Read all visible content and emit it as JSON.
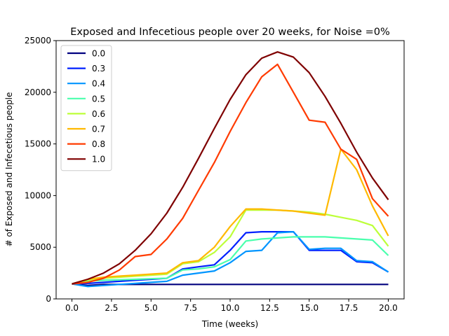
{
  "chart_data": {
    "type": "line",
    "title": "Exposed and Infecetious people over 20 weeks, for Noise =0%",
    "xlabel": "Time (weeks)",
    "ylabel": "# of Exposed and Infecetious people",
    "xlim": [
      -1,
      21
    ],
    "ylim": [
      0,
      25000
    ],
    "x_ticks": [
      0,
      2.5,
      5,
      7.5,
      10,
      12.5,
      15,
      17.5,
      20
    ],
    "x_tick_labels": [
      "0.0",
      "2.5",
      "5.0",
      "7.5",
      "10.0",
      "12.5",
      "15.0",
      "17.5",
      "20.0"
    ],
    "y_ticks": [
      0,
      5000,
      10000,
      15000,
      20000,
      25000
    ],
    "y_tick_labels": [
      "0",
      "5000",
      "10000",
      "15000",
      "20000",
      "25000"
    ],
    "grid": false,
    "legend_position": "top-left",
    "x": [
      0,
      1,
      2,
      3,
      4,
      5,
      6,
      7,
      8,
      9,
      10,
      11,
      12,
      13,
      14,
      15,
      16,
      17,
      18,
      19,
      20
    ],
    "series": [
      {
        "name": "0.0",
        "color": "#00007f",
        "values": [
          1450,
          1300,
          1400,
          1400,
          1400,
          1400,
          1400,
          1400,
          1400,
          1400,
          1400,
          1400,
          1400,
          1400,
          1400,
          1400,
          1400,
          1400,
          1400,
          1400,
          1400
        ]
      },
      {
        "name": "0.3",
        "color": "#0020ff",
        "values": [
          1450,
          1500,
          1600,
          1700,
          1800,
          1900,
          2000,
          2900,
          3100,
          3300,
          4700,
          6400,
          6500,
          6500,
          6500,
          4700,
          4700,
          4700,
          3600,
          3500,
          2600
        ]
      },
      {
        "name": "0.4",
        "color": "#0095ff",
        "values": [
          1450,
          1200,
          1300,
          1400,
          1500,
          1600,
          1700,
          2300,
          2500,
          2700,
          3500,
          4600,
          4700,
          6400,
          6500,
          4800,
          4900,
          4900,
          3700,
          3600,
          2600
        ]
      },
      {
        "name": "0.5",
        "color": "#4affad",
        "values": [
          1450,
          1700,
          1800,
          1850,
          1900,
          1950,
          2000,
          2800,
          2900,
          3100,
          3800,
          5600,
          5800,
          5900,
          6000,
          6000,
          6000,
          5900,
          5800,
          5700,
          4200
        ]
      },
      {
        "name": "0.6",
        "color": "#bdff39",
        "values": [
          1450,
          1800,
          2000,
          2100,
          2200,
          2300,
          2400,
          3400,
          3600,
          4500,
          6000,
          8600,
          8600,
          8600,
          8500,
          8400,
          8200,
          7900,
          7600,
          7100,
          5100
        ]
      },
      {
        "name": "0.7",
        "color": "#ffb900",
        "values": [
          1450,
          1900,
          2100,
          2200,
          2300,
          2400,
          2500,
          3500,
          3700,
          5000,
          7000,
          8700,
          8700,
          8600,
          8500,
          8300,
          8100,
          14500,
          12500,
          9000,
          6100
        ]
      },
      {
        "name": "0.8",
        "color": "#ff3b00",
        "values": [
          1450,
          1600,
          2000,
          2800,
          4100,
          4300,
          5800,
          7800,
          10500,
          13200,
          16200,
          19000,
          21500,
          22700,
          20000,
          17300,
          17100,
          14500,
          13500,
          9700,
          8000
        ]
      },
      {
        "name": "1.0",
        "color": "#7f0000",
        "values": [
          1450,
          1900,
          2500,
          3400,
          4700,
          6300,
          8300,
          10800,
          13600,
          16500,
          19300,
          21700,
          23300,
          23900,
          23400,
          21900,
          19600,
          17000,
          14200,
          11700,
          9600
        ]
      }
    ]
  }
}
